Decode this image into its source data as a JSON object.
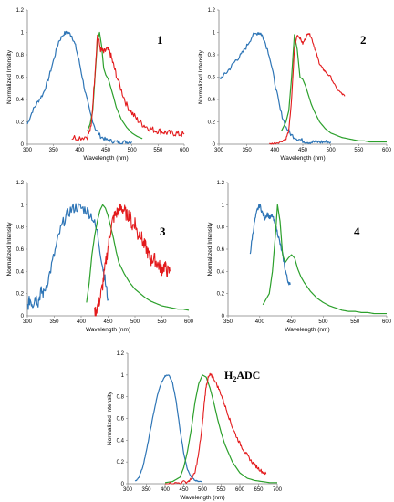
{
  "colors": {
    "blue": "#2e75b6",
    "green": "#2ca02c",
    "red": "#e31a1c"
  },
  "chart_data": [
    {
      "type": "line",
      "label": "1",
      "xlabel": "Wavelength (nm)",
      "ylabel": "Normalized Intensity",
      "xlim": [
        300,
        600
      ],
      "ylim": [
        0,
        1.2
      ],
      "xticks": [
        "300",
        "350",
        "400",
        "450",
        "500",
        "550",
        "600"
      ],
      "yticks": [
        "0",
        "0.2",
        "0.4",
        "0.6",
        "0.8",
        "1",
        "1.2"
      ],
      "grid": false,
      "series": [
        {
          "color": "blue",
          "noise": 0.018,
          "x": [
            300,
            310,
            320,
            330,
            340,
            350,
            360,
            370,
            378,
            385,
            392,
            400,
            410,
            420,
            430,
            440,
            450,
            460,
            470,
            480,
            490,
            500
          ],
          "y": [
            0.18,
            0.3,
            0.38,
            0.45,
            0.58,
            0.75,
            0.92,
            0.99,
            1.0,
            0.97,
            0.88,
            0.72,
            0.48,
            0.28,
            0.14,
            0.07,
            0.04,
            0.03,
            0.02,
            0.02,
            0.02,
            0.02
          ]
        },
        {
          "color": "green",
          "noise": 0.0,
          "x": [
            415,
            420,
            425,
            430,
            434,
            438,
            442,
            446,
            450,
            455,
            460,
            465,
            470,
            480,
            490,
            500,
            510,
            520
          ],
          "y": [
            0.12,
            0.18,
            0.3,
            0.65,
            0.92,
            1.0,
            0.88,
            0.68,
            0.62,
            0.58,
            0.5,
            0.42,
            0.33,
            0.22,
            0.15,
            0.1,
            0.07,
            0.05
          ]
        },
        {
          "color": "red",
          "noise": 0.03,
          "x": [
            385,
            400,
            415,
            422,
            428,
            434,
            440,
            446,
            452,
            458,
            464,
            470,
            480,
            490,
            500,
            510,
            520,
            530,
            540,
            550,
            560,
            570,
            580,
            590,
            600
          ],
          "y": [
            0.06,
            0.06,
            0.07,
            0.15,
            0.55,
            0.98,
            0.85,
            0.82,
            0.85,
            0.82,
            0.72,
            0.62,
            0.48,
            0.35,
            0.28,
            0.22,
            0.18,
            0.15,
            0.13,
            0.12,
            0.11,
            0.1,
            0.1,
            0.09,
            0.09
          ]
        }
      ]
    },
    {
      "type": "line",
      "label": "2",
      "xlabel": "Wavelength (nm)",
      "ylabel": "Normalized Intensity",
      "xlim": [
        300,
        600
      ],
      "ylim": [
        0,
        1.2
      ],
      "xticks": [
        "300",
        "350",
        "400",
        "450",
        "500",
        "550",
        "600"
      ],
      "yticks": [
        "0",
        "0.2",
        "0.4",
        "0.6",
        "0.8",
        "1",
        "1.2"
      ],
      "grid": false,
      "series": [
        {
          "color": "blue",
          "noise": 0.02,
          "x": [
            300,
            310,
            320,
            330,
            340,
            350,
            360,
            370,
            375,
            380,
            390,
            400,
            410,
            420,
            430,
            440,
            450,
            460,
            470,
            480,
            490,
            500
          ],
          "y": [
            0.58,
            0.62,
            0.68,
            0.75,
            0.8,
            0.88,
            0.97,
            1.0,
            0.99,
            0.95,
            0.8,
            0.55,
            0.3,
            0.15,
            0.08,
            0.05,
            0.03,
            0.02,
            0.02,
            0.02,
            0.02,
            0.02
          ]
        },
        {
          "color": "green",
          "noise": 0.0,
          "x": [
            412,
            420,
            425,
            430,
            435,
            440,
            445,
            450,
            455,
            460,
            465,
            470,
            480,
            490,
            500,
            510,
            520,
            530,
            540,
            550,
            560,
            570,
            580,
            590,
            600
          ],
          "y": [
            0.12,
            0.2,
            0.3,
            0.6,
            0.98,
            0.85,
            0.6,
            0.58,
            0.52,
            0.44,
            0.36,
            0.3,
            0.2,
            0.14,
            0.1,
            0.08,
            0.06,
            0.05,
            0.04,
            0.03,
            0.03,
            0.02,
            0.02,
            0.02,
            0.02
          ]
        },
        {
          "color": "red",
          "noise": 0.01,
          "x": [
            390,
            400,
            410,
            420,
            425,
            430,
            435,
            440,
            445,
            450,
            455,
            460,
            465,
            470,
            475,
            480,
            485,
            490,
            500,
            510,
            520,
            525
          ],
          "y": [
            0.0,
            0.01,
            0.02,
            0.05,
            0.12,
            0.4,
            0.85,
            0.98,
            0.95,
            0.9,
            0.95,
            1.0,
            0.96,
            0.88,
            0.8,
            0.72,
            0.68,
            0.65,
            0.6,
            0.5,
            0.45,
            0.43
          ]
        }
      ]
    },
    {
      "type": "line",
      "label": "3",
      "xlabel": "Wavelength (nm)",
      "ylabel": "Normalized Intensity",
      "xlim": [
        300,
        600
      ],
      "ylim": [
        0,
        1.2
      ],
      "xticks": [
        "300",
        "350",
        "400",
        "450",
        "500",
        "550",
        "600"
      ],
      "yticks": [
        "0",
        "0.2",
        "0.4",
        "0.6",
        "0.8",
        "1",
        "1.2"
      ],
      "grid": false,
      "series": [
        {
          "color": "blue",
          "noise": 0.05,
          "x": [
            300,
            305,
            310,
            315,
            320,
            325,
            330,
            340,
            350,
            360,
            370,
            380,
            390,
            400,
            410,
            420,
            430,
            440,
            445,
            450
          ],
          "y": [
            0.08,
            0.15,
            0.1,
            0.18,
            0.12,
            0.22,
            0.2,
            0.35,
            0.55,
            0.75,
            0.88,
            0.95,
            0.98,
            0.97,
            0.95,
            0.9,
            0.75,
            0.45,
            0.3,
            0.15
          ]
        },
        {
          "color": "green",
          "noise": 0.0,
          "x": [
            410,
            415,
            420,
            425,
            430,
            435,
            440,
            445,
            450,
            455,
            460,
            465,
            470,
            480,
            490,
            500,
            510,
            520,
            530,
            540,
            550,
            560,
            570,
            580,
            590,
            600
          ],
          "y": [
            0.12,
            0.3,
            0.55,
            0.72,
            0.85,
            0.95,
            1.0,
            0.97,
            0.9,
            0.8,
            0.7,
            0.58,
            0.48,
            0.38,
            0.3,
            0.24,
            0.2,
            0.16,
            0.13,
            0.11,
            0.09,
            0.08,
            0.07,
            0.06,
            0.06,
            0.05
          ]
        },
        {
          "color": "red",
          "noise": 0.06,
          "x": [
            425,
            430,
            435,
            440,
            445,
            450,
            455,
            460,
            465,
            470,
            475,
            480,
            485,
            490,
            495,
            500,
            505,
            510,
            515,
            520,
            525,
            530,
            535,
            540,
            545,
            550,
            555,
            560,
            565
          ],
          "y": [
            0.02,
            0.08,
            0.15,
            0.28,
            0.45,
            0.62,
            0.78,
            0.88,
            0.92,
            0.95,
            0.97,
            0.95,
            0.9,
            0.92,
            0.8,
            0.85,
            0.72,
            0.75,
            0.65,
            0.62,
            0.55,
            0.5,
            0.52,
            0.48,
            0.45,
            0.42,
            0.45,
            0.4,
            0.4
          ]
        }
      ]
    },
    {
      "type": "line",
      "label": "4",
      "xlabel": "Wavelength (nm)",
      "ylabel": "Normalized Intensity",
      "xlim": [
        350,
        600
      ],
      "ylim": [
        0,
        1.2
      ],
      "xticks": [
        "350",
        "400",
        "450",
        "500",
        "550",
        "600"
      ],
      "yticks": [
        "0",
        "0.2",
        "0.4",
        "0.6",
        "0.8",
        "1",
        "1.2"
      ],
      "grid": false,
      "series": [
        {
          "color": "blue",
          "noise": 0.02,
          "x": [
            385,
            388,
            392,
            396,
            400,
            404,
            408,
            412,
            416,
            420,
            424,
            428,
            432,
            436,
            440,
            444,
            448
          ],
          "y": [
            0.56,
            0.7,
            0.85,
            0.95,
            1.0,
            0.93,
            0.88,
            0.92,
            0.88,
            0.9,
            0.82,
            0.75,
            0.65,
            0.55,
            0.42,
            0.32,
            0.28
          ]
        },
        {
          "color": "green",
          "noise": 0.0,
          "x": [
            405,
            410,
            415,
            420,
            425,
            428,
            432,
            436,
            440,
            445,
            450,
            455,
            460,
            465,
            470,
            480,
            490,
            500,
            510,
            520,
            530,
            540,
            550,
            560,
            570,
            580,
            590,
            600
          ],
          "y": [
            0.1,
            0.15,
            0.2,
            0.4,
            0.75,
            1.0,
            0.85,
            0.55,
            0.48,
            0.52,
            0.55,
            0.52,
            0.42,
            0.35,
            0.3,
            0.22,
            0.16,
            0.12,
            0.09,
            0.07,
            0.05,
            0.04,
            0.04,
            0.03,
            0.03,
            0.02,
            0.02,
            0.02
          ]
        }
      ]
    },
    {
      "type": "line",
      "label": "H2ADC",
      "label_main": "H",
      "label_sub": "2",
      "label_rest": "ADC",
      "xlabel": "Wavelength (nm)",
      "ylabel": "Normalized Intensity",
      "xlim": [
        300,
        700
      ],
      "ylim": [
        0,
        1.2
      ],
      "xticks": [
        "300",
        "350",
        "400",
        "450",
        "500",
        "550",
        "600",
        "650",
        "700"
      ],
      "yticks": [
        "0",
        "0.2",
        "0.4",
        "0.6",
        "0.8",
        "1",
        "1.2"
      ],
      "grid": false,
      "series": [
        {
          "color": "blue",
          "noise": 0.005,
          "x": [
            320,
            330,
            340,
            350,
            360,
            370,
            380,
            390,
            400,
            410,
            420,
            430,
            440,
            450,
            460,
            470,
            480,
            490,
            500
          ],
          "y": [
            0.02,
            0.06,
            0.15,
            0.3,
            0.48,
            0.66,
            0.82,
            0.93,
            0.99,
            1.0,
            0.93,
            0.75,
            0.5,
            0.28,
            0.13,
            0.06,
            0.03,
            0.02,
            0.02
          ]
        },
        {
          "color": "green",
          "noise": 0.0,
          "x": [
            400,
            420,
            440,
            450,
            460,
            470,
            480,
            490,
            500,
            510,
            520,
            530,
            540,
            550,
            560,
            580,
            600,
            620,
            640,
            660,
            680,
            700
          ],
          "y": [
            0.01,
            0.02,
            0.06,
            0.15,
            0.3,
            0.5,
            0.75,
            0.92,
            1.0,
            0.98,
            0.88,
            0.75,
            0.6,
            0.47,
            0.36,
            0.2,
            0.1,
            0.05,
            0.03,
            0.02,
            0.01,
            0.01
          ]
        },
        {
          "color": "red",
          "noise": 0.015,
          "x": [
            400,
            420,
            440,
            460,
            470,
            480,
            490,
            500,
            505,
            510,
            515,
            520,
            525,
            530,
            540,
            550,
            560,
            570,
            580,
            590,
            600,
            610,
            620,
            630,
            640,
            650,
            660,
            670
          ],
          "y": [
            0.0,
            0.0,
            0.01,
            0.02,
            0.04,
            0.1,
            0.28,
            0.55,
            0.75,
            0.9,
            0.97,
            1.0,
            0.99,
            0.97,
            0.9,
            0.82,
            0.72,
            0.62,
            0.52,
            0.44,
            0.37,
            0.31,
            0.26,
            0.21,
            0.17,
            0.14,
            0.11,
            0.09
          ]
        }
      ]
    }
  ]
}
